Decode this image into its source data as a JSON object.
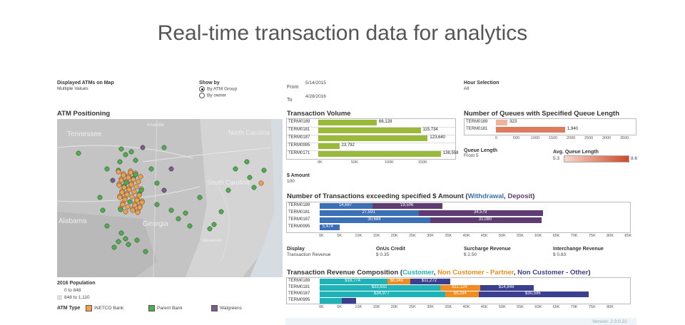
{
  "title": "Real-time transaction data for analytics",
  "filters": {
    "displayed_label": "Displayed ATMs on Map",
    "displayed_value": "Multiple Values",
    "show_by_label": "Show by",
    "show_by_options": [
      "By ATM Group",
      "By owner"
    ],
    "from_label": "From",
    "from_value": "5/14/2015",
    "to_label": "To",
    "to_value": "4/28/2016",
    "hour_label": "Hour Selection",
    "hour_value": "All"
  },
  "map": {
    "title": "ATM Positioning",
    "place_labels": [
      "Tennessee",
      "North Carolina",
      "South Carolina",
      "Alabama",
      "Georgia",
      "Knoxville",
      "Savannah"
    ],
    "population_title": "2016 Population",
    "population_ranges": [
      "0 to 848",
      "848 to 1,110"
    ],
    "atm_type_label": "ATM Type",
    "atm_types": [
      "INETCO Bank",
      "Parent Bank",
      "Walgreens"
    ],
    "atm_colors": [
      "#f4a24a",
      "#4cae4c",
      "#7b5a8c"
    ]
  },
  "volume": {
    "title": "Transaction Volume",
    "rows": [
      {
        "term": "TERM0189",
        "value": 66128,
        "label": "66,128"
      },
      {
        "term": "TERM0181",
        "value": 115734,
        "label": "115,734"
      },
      {
        "term": "TERM0187",
        "value": 123640,
        "label": "123,640"
      },
      {
        "term": "TERM0995",
        "value": 23792,
        "label": "23,792"
      },
      {
        "term": "TERM0171",
        "value": 138558,
        "label": "138,558"
      }
    ],
    "ticks": [
      "0K",
      "50K",
      "100K",
      "150K"
    ],
    "amount_label": "$ Amount",
    "amount_value": "100",
    "color": "#9ab93b"
  },
  "queues": {
    "title": "Number of Queues with Specified Queue Length",
    "rows": [
      {
        "term": "TERM0189",
        "value": 323,
        "label": "323"
      },
      {
        "term": "TERM0181",
        "value": 1940,
        "label": "1,940"
      }
    ],
    "ticks": [
      "0",
      "500",
      "1000",
      "1500",
      "2000",
      "2500",
      "3000",
      "3500"
    ],
    "queue_length_label": "Queue Length",
    "queue_length_value": "From 5",
    "avg_label": "Avg. Queue Length",
    "avg_min": "5.3",
    "avg_max": "8.6"
  },
  "exceed": {
    "title_prefix": "Number of Transactions exceeding specified $ Amount (",
    "title_w": "Withdrawal",
    "title_sep": ", ",
    "title_d": "Deposit",
    "title_suffix": ")",
    "rows": [
      {
        "term": "TERM0189",
        "w": 14687,
        "wl": "14,687",
        "d": 19506,
        "dl": "19,506"
      },
      {
        "term": "TERM0181",
        "w": 27591,
        "wl": "27,591",
        "d": 34579,
        "dl": "34,579"
      },
      {
        "term": "TERM0187",
        "w": 30684,
        "wl": "30,684",
        "d": 31080,
        "dl": "31,080"
      },
      {
        "term": "TERM0995",
        "w": 5474,
        "wl": "5,474",
        "d": 0,
        "dl": ""
      }
    ],
    "ticks": [
      "0K",
      "5K",
      "10K",
      "15K",
      "20K",
      "25K",
      "30K",
      "35K",
      "40K",
      "45K",
      "50K",
      "55K",
      "60K",
      "65K",
      "70K",
      "75K",
      "80K",
      "85K"
    ],
    "w_color": "#3b6fb6",
    "d_color": "#5f3d73"
  },
  "revenue_params": {
    "display_label": "Display",
    "display_value": "Transaction Revenue",
    "onus_label": "OnUs Credit",
    "onus_value": "$ 0.35",
    "surcharge_label": "Surcharge Revenue",
    "surcharge_value": "$ 2.50",
    "interchange_label": "Interchange Revenue",
    "interchange_value": "$ 0.83"
  },
  "composition": {
    "title_prefix": "Transaction Revenue Composition (",
    "t1": "Customer",
    "t2": "Non Customer - Partner",
    "t3": "Non Customer - Other",
    "title_suffix": ")",
    "rows": [
      {
        "term": "TERM0189",
        "c": 18774,
        "cl": "$18,774",
        "p": 6349,
        "pl": "$6,349",
        "o": 11272,
        "ol": "$11,272"
      },
      {
        "term": "TERM0181",
        "c": 33632,
        "cl": "$33,632",
        "p": 11124,
        "pl": "$11,124",
        "o": 14848,
        "ol": "$14,848"
      },
      {
        "term": "TERM0187",
        "c": 34977,
        "cl": "$34,977",
        "p": 9294,
        "pl": "$9,294",
        "o": 30596,
        "ol": "$30,596"
      },
      {
        "term": "TERM0995",
        "c": 6216,
        "cl": "",
        "p": 0,
        "pl": "",
        "o": 4000,
        "ol": ""
      }
    ],
    "ticks": [
      "0K",
      "5K",
      "10K",
      "15K",
      "20K",
      "25K",
      "30K",
      "35K",
      "40K",
      "45K",
      "50K",
      "55K",
      "60K",
      "65K",
      "70K",
      "75K",
      "80K"
    ],
    "c_color": "#1fb3b8",
    "p_color": "#f28c1e",
    "o_color": "#3b3f8f"
  },
  "version": "Version: 2.0.0.22"
}
